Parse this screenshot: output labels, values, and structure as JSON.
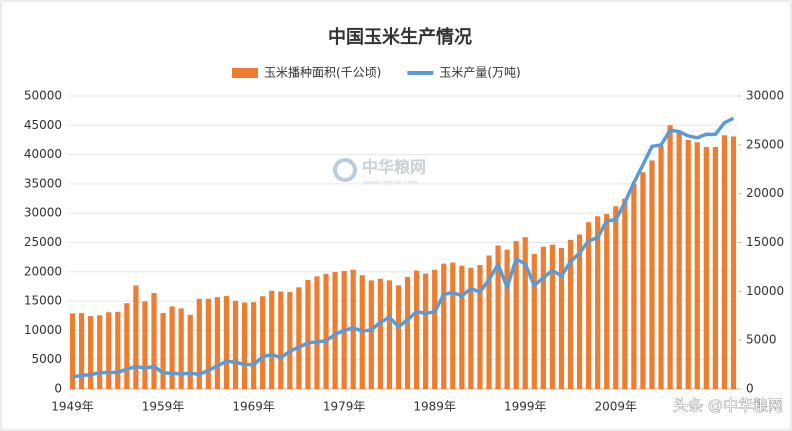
{
  "chart_data": {
    "type": "bar_line",
    "title": "中国玉米生产情况",
    "categories": [
      "1949年",
      null,
      null,
      null,
      null,
      null,
      null,
      null,
      null,
      null,
      "1959年",
      null,
      null,
      null,
      null,
      null,
      null,
      null,
      null,
      null,
      "1969年",
      null,
      null,
      null,
      null,
      null,
      null,
      null,
      null,
      null,
      "1979年",
      null,
      null,
      null,
      null,
      null,
      null,
      null,
      null,
      null,
      "1989年",
      null,
      null,
      null,
      null,
      null,
      null,
      null,
      null,
      null,
      "1999年",
      null,
      null,
      null,
      null,
      null,
      null,
      null,
      null,
      null,
      "2009年",
      null,
      null,
      null,
      null,
      null,
      null,
      null,
      null,
      null,
      null,
      null,
      null,
      null
    ],
    "series": [
      {
        "name": "玉米播种面积(千公顷)",
        "color": "#ed7d31",
        "kind": "bar",
        "values": [
          12900,
          12950,
          12450,
          12570,
          13100,
          13170,
          14640,
          17660,
          14940,
          16370,
          12960,
          14100,
          13740,
          12660,
          15400,
          15400,
          15670,
          15850,
          15060,
          14760,
          14820,
          15830,
          16770,
          16640,
          16540,
          17350,
          18600,
          19220,
          19660,
          19960,
          20130,
          20350,
          19420,
          18540,
          18820,
          18540,
          17690,
          19120,
          20210,
          19690,
          20350,
          21400,
          21570,
          21040,
          20690,
          21150,
          22780,
          24500,
          23780,
          25240,
          25900,
          23060,
          24280,
          24630,
          24070,
          25450,
          26360,
          28460,
          29480,
          29860,
          31180,
          32500,
          35000,
          37000,
          39000,
          41500,
          45000,
          44000,
          42500,
          42100,
          41300,
          41300,
          43300,
          43100
        ]
      },
      {
        "name": "玉米产量(万吨)",
        "color": "#5b9bd5",
        "kind": "line",
        "axis": "y2",
        "values": [
          1240,
          1390,
          1460,
          1680,
          1690,
          1710,
          2030,
          2300,
          2140,
          2310,
          1660,
          1600,
          1550,
          1630,
          1500,
          1900,
          2370,
          2840,
          2740,
          2500,
          2500,
          3300,
          3530,
          3210,
          3860,
          4290,
          4720,
          4820,
          4940,
          5590,
          6000,
          6260,
          5920,
          6060,
          6820,
          7340,
          6380,
          7090,
          7920,
          7740,
          7890,
          9680,
          9880,
          9540,
          10270,
          9930,
          11200,
          12750,
          10430,
          13300,
          12810,
          10600,
          11410,
          12130,
          11580,
          13030,
          13940,
          15160,
          15510,
          17210,
          17330,
          19080,
          21130,
          22960,
          24850,
          24980,
          26500,
          26360,
          25910,
          25720,
          26080,
          26070,
          27260,
          27720
        ]
      }
    ],
    "ylim": [
      0,
      50000
    ],
    "yticks": [
      0,
      5000,
      10000,
      15000,
      20000,
      25000,
      30000,
      35000,
      40000,
      45000,
      50000
    ],
    "y2lim": [
      0,
      30000
    ],
    "y2ticks": [
      0,
      5000,
      10000,
      15000,
      20000,
      25000,
      30000
    ],
    "legend": "top",
    "watermark": "中华粮网",
    "watermark_url": "www.cngrain.com",
    "source_tag": "头条 @中华粮网"
  }
}
